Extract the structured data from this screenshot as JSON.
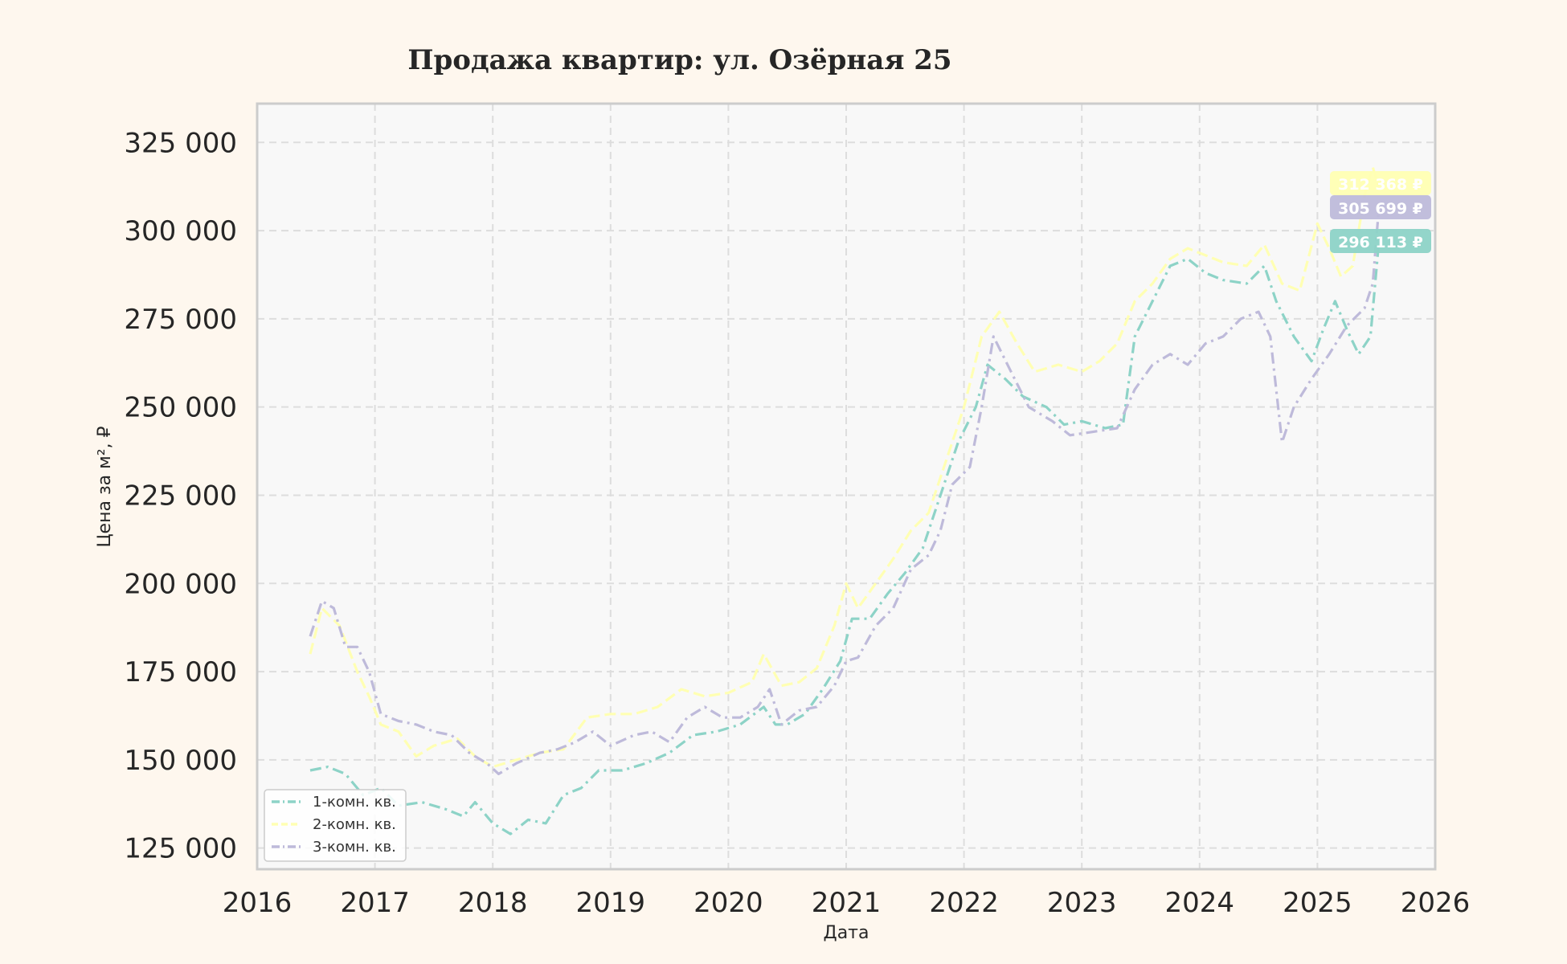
{
  "chart_data": {
    "type": "line",
    "title": "Продажа квартир: ул. Озёрная 25",
    "xlabel": "Дата",
    "ylabel": "Цена за м², ₽",
    "xlim": [
      2016,
      2026
    ],
    "ylim": [
      119000,
      336000
    ],
    "x_ticks": [
      "2016",
      "2017",
      "2018",
      "2019",
      "2020",
      "2021",
      "2022",
      "2023",
      "2024",
      "2025",
      "2026"
    ],
    "y_ticks": [
      {
        "value": 125000,
        "label": "125 000"
      },
      {
        "value": 150000,
        "label": "150 000"
      },
      {
        "value": 175000,
        "label": "175 000"
      },
      {
        "value": 200000,
        "label": "200 000"
      },
      {
        "value": 225000,
        "label": "225 000"
      },
      {
        "value": 250000,
        "label": "250 000"
      },
      {
        "value": 275000,
        "label": "275 000"
      },
      {
        "value": 300000,
        "label": "300 000"
      },
      {
        "value": 325000,
        "label": "325 000"
      }
    ],
    "grid": true,
    "legend_position": "bottom-left",
    "series": [
      {
        "name": "1-комн. кв.",
        "color": "#8dd3c7",
        "dash": "dash-dot",
        "end_label": "296 113 ₽",
        "points": [
          [
            2016.45,
            147000
          ],
          [
            2016.6,
            148000
          ],
          [
            2016.75,
            146000
          ],
          [
            2016.9,
            140000
          ],
          [
            2017.05,
            142000
          ],
          [
            2017.2,
            137000
          ],
          [
            2017.4,
            138000
          ],
          [
            2017.6,
            136000
          ],
          [
            2017.75,
            134000
          ],
          [
            2017.85,
            138000
          ],
          [
            2018.0,
            132000
          ],
          [
            2018.15,
            129000
          ],
          [
            2018.3,
            133000
          ],
          [
            2018.45,
            132000
          ],
          [
            2018.6,
            140000
          ],
          [
            2018.75,
            142000
          ],
          [
            2018.9,
            147000
          ],
          [
            2019.1,
            147000
          ],
          [
            2019.3,
            149000
          ],
          [
            2019.5,
            152000
          ],
          [
            2019.7,
            157000
          ],
          [
            2019.9,
            158000
          ],
          [
            2020.1,
            160000
          ],
          [
            2020.3,
            165000
          ],
          [
            2020.4,
            160000
          ],
          [
            2020.5,
            160000
          ],
          [
            2020.65,
            163000
          ],
          [
            2020.8,
            170000
          ],
          [
            2020.95,
            178000
          ],
          [
            2021.05,
            190000
          ],
          [
            2021.2,
            190000
          ],
          [
            2021.35,
            197000
          ],
          [
            2021.5,
            203000
          ],
          [
            2021.65,
            210000
          ],
          [
            2021.8,
            225000
          ],
          [
            2021.95,
            240000
          ],
          [
            2022.1,
            250000
          ],
          [
            2022.2,
            262000
          ],
          [
            2022.35,
            258000
          ],
          [
            2022.5,
            253000
          ],
          [
            2022.7,
            250000
          ],
          [
            2022.85,
            245000
          ],
          [
            2023.0,
            246000
          ],
          [
            2023.2,
            244000
          ],
          [
            2023.35,
            245000
          ],
          [
            2023.45,
            270000
          ],
          [
            2023.6,
            280000
          ],
          [
            2023.75,
            290000
          ],
          [
            2023.9,
            292000
          ],
          [
            2024.05,
            288000
          ],
          [
            2024.2,
            286000
          ],
          [
            2024.4,
            285000
          ],
          [
            2024.55,
            290000
          ],
          [
            2024.65,
            280000
          ],
          [
            2024.8,
            270000
          ],
          [
            2024.95,
            263000
          ],
          [
            2025.05,
            272000
          ],
          [
            2025.15,
            280000
          ],
          [
            2025.25,
            272000
          ],
          [
            2025.35,
            265000
          ],
          [
            2025.45,
            270000
          ],
          [
            2025.52,
            296113
          ]
        ]
      },
      {
        "name": "2-комн. кв.",
        "color": "#ffffb3",
        "dash": "dashed",
        "end_label": "312 368 ₽",
        "points": [
          [
            2016.45,
            180000
          ],
          [
            2016.55,
            193000
          ],
          [
            2016.7,
            188000
          ],
          [
            2016.85,
            175000
          ],
          [
            2016.95,
            168000
          ],
          [
            2017.05,
            160000
          ],
          [
            2017.2,
            158000
          ],
          [
            2017.35,
            151000
          ],
          [
            2017.5,
            154000
          ],
          [
            2017.7,
            156000
          ],
          [
            2017.85,
            151000
          ],
          [
            2018.0,
            148000
          ],
          [
            2018.2,
            150000
          ],
          [
            2018.4,
            152000
          ],
          [
            2018.6,
            153000
          ],
          [
            2018.8,
            162000
          ],
          [
            2019.0,
            163000
          ],
          [
            2019.2,
            163000
          ],
          [
            2019.4,
            165000
          ],
          [
            2019.6,
            170000
          ],
          [
            2019.8,
            168000
          ],
          [
            2020.0,
            169000
          ],
          [
            2020.2,
            172000
          ],
          [
            2020.3,
            180000
          ],
          [
            2020.45,
            171000
          ],
          [
            2020.6,
            172000
          ],
          [
            2020.75,
            176000
          ],
          [
            2020.9,
            188000
          ],
          [
            2021.0,
            200000
          ],
          [
            2021.1,
            193000
          ],
          [
            2021.25,
            200000
          ],
          [
            2021.4,
            207000
          ],
          [
            2021.55,
            215000
          ],
          [
            2021.7,
            220000
          ],
          [
            2021.85,
            235000
          ],
          [
            2022.0,
            250000
          ],
          [
            2022.15,
            270000
          ],
          [
            2022.3,
            277000
          ],
          [
            2022.45,
            268000
          ],
          [
            2022.6,
            260000
          ],
          [
            2022.8,
            262000
          ],
          [
            2023.0,
            260000
          ],
          [
            2023.15,
            263000
          ],
          [
            2023.3,
            268000
          ],
          [
            2023.45,
            280000
          ],
          [
            2023.6,
            285000
          ],
          [
            2023.75,
            292000
          ],
          [
            2023.9,
            295000
          ],
          [
            2024.05,
            293000
          ],
          [
            2024.2,
            291000
          ],
          [
            2024.4,
            290000
          ],
          [
            2024.55,
            296000
          ],
          [
            2024.7,
            285000
          ],
          [
            2024.85,
            283000
          ],
          [
            2025.0,
            302000
          ],
          [
            2025.1,
            295000
          ],
          [
            2025.2,
            287000
          ],
          [
            2025.3,
            290000
          ],
          [
            2025.4,
            310000
          ],
          [
            2025.47,
            318000
          ],
          [
            2025.52,
            312368
          ]
        ]
      },
      {
        "name": "3-комн. кв.",
        "color": "#bebada",
        "dash": "dash-dot",
        "end_label": "305 699 ₽",
        "points": [
          [
            2016.45,
            185000
          ],
          [
            2016.55,
            195000
          ],
          [
            2016.65,
            193000
          ],
          [
            2016.75,
            182000
          ],
          [
            2016.85,
            182000
          ],
          [
            2016.95,
            175000
          ],
          [
            2017.05,
            163000
          ],
          [
            2017.2,
            161000
          ],
          [
            2017.35,
            160000
          ],
          [
            2017.5,
            158000
          ],
          [
            2017.65,
            157000
          ],
          [
            2017.8,
            152000
          ],
          [
            2017.95,
            149000
          ],
          [
            2018.05,
            146000
          ],
          [
            2018.2,
            149000
          ],
          [
            2018.4,
            152000
          ],
          [
            2018.55,
            153000
          ],
          [
            2018.7,
            155000
          ],
          [
            2018.85,
            158000
          ],
          [
            2019.0,
            154000
          ],
          [
            2019.2,
            157000
          ],
          [
            2019.35,
            158000
          ],
          [
            2019.5,
            155000
          ],
          [
            2019.65,
            162000
          ],
          [
            2019.8,
            165000
          ],
          [
            2019.95,
            162000
          ],
          [
            2020.1,
            162000
          ],
          [
            2020.25,
            165000
          ],
          [
            2020.35,
            170000
          ],
          [
            2020.45,
            160000
          ],
          [
            2020.6,
            164000
          ],
          [
            2020.75,
            165000
          ],
          [
            2020.9,
            171000
          ],
          [
            2021.0,
            178000
          ],
          [
            2021.1,
            179000
          ],
          [
            2021.25,
            188000
          ],
          [
            2021.4,
            193000
          ],
          [
            2021.55,
            204000
          ],
          [
            2021.7,
            208000
          ],
          [
            2021.8,
            215000
          ],
          [
            2021.9,
            228000
          ],
          [
            2022.05,
            233000
          ],
          [
            2022.15,
            250000
          ],
          [
            2022.25,
            270000
          ],
          [
            2022.4,
            260000
          ],
          [
            2022.55,
            250000
          ],
          [
            2022.75,
            246000
          ],
          [
            2022.9,
            242000
          ],
          [
            2023.1,
            243000
          ],
          [
            2023.3,
            244000
          ],
          [
            2023.45,
            255000
          ],
          [
            2023.6,
            262000
          ],
          [
            2023.75,
            265000
          ],
          [
            2023.9,
            262000
          ],
          [
            2024.05,
            268000
          ],
          [
            2024.2,
            270000
          ],
          [
            2024.35,
            275000
          ],
          [
            2024.5,
            277000
          ],
          [
            2024.6,
            270000
          ],
          [
            2024.7,
            240000
          ],
          [
            2024.8,
            250000
          ],
          [
            2024.95,
            258000
          ],
          [
            2025.1,
            265000
          ],
          [
            2025.25,
            273000
          ],
          [
            2025.4,
            278000
          ],
          [
            2025.47,
            285000
          ],
          [
            2025.52,
            305699
          ]
        ]
      }
    ]
  }
}
